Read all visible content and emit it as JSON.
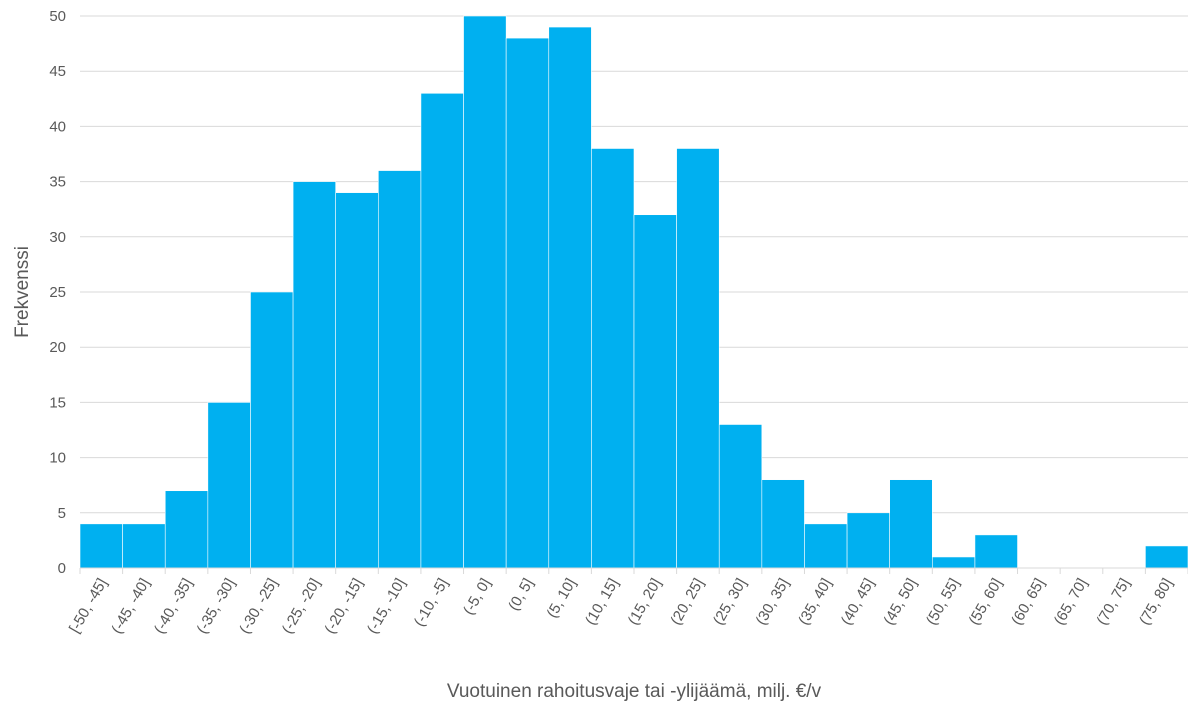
{
  "chart_data": {
    "type": "bar",
    "xlabel": "Vuotuinen rahoitusvaje tai -ylijäämä, milj. €/v",
    "ylabel": "Frekvenssi",
    "ylim": [
      0,
      50
    ],
    "yticks": [
      0,
      5,
      10,
      15,
      20,
      25,
      30,
      35,
      40,
      45,
      50
    ],
    "grid": true,
    "legend": "none",
    "categories": [
      "[-50, -45]",
      "(-45, -40]",
      "(-40, -35]",
      "(-35, -30]",
      "(-30, -25]",
      "(-25, -20]",
      "(-20, -15]",
      "(-15, -10]",
      "(-10, -5]",
      "(-5, 0]",
      "(0, 5]",
      "(5, 10]",
      "(10, 15]",
      "(15, 20]",
      "(20, 25]",
      "(25, 30]",
      "(30, 35]",
      "(35, 40]",
      "(40, 45]",
      "(45, 50]",
      "(50, 55]",
      "(55, 60]",
      "(60, 65]",
      "(65, 70]",
      "(70, 75]",
      "(75, 80]"
    ],
    "values": [
      4,
      4,
      7,
      15,
      25,
      35,
      34,
      36,
      43,
      50,
      48,
      49,
      38,
      32,
      38,
      13,
      8,
      4,
      5,
      8,
      1,
      3,
      0,
      0,
      0,
      2
    ],
    "colors": {
      "bar": "#00B0F0",
      "bar_edge": "#ffffff",
      "grid": "#D9D9D9",
      "text": "#595959"
    }
  }
}
